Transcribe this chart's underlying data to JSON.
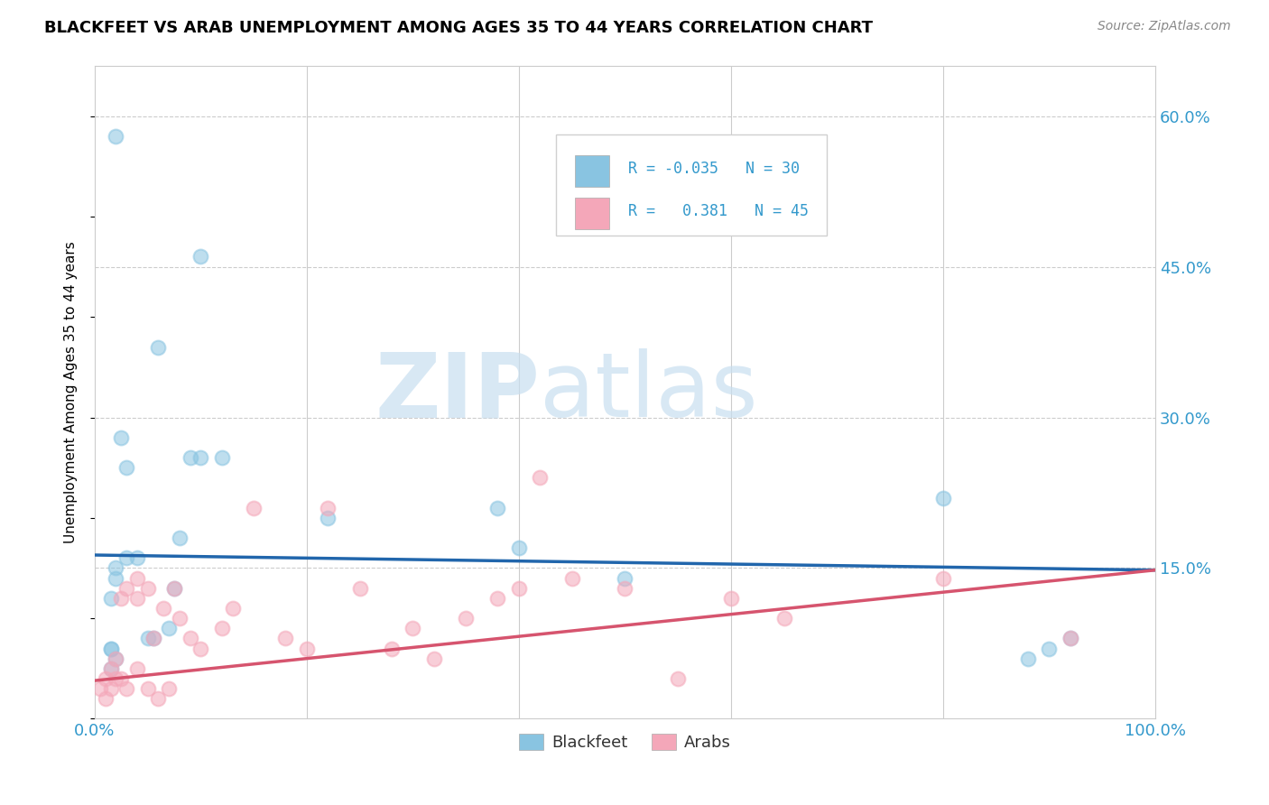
{
  "title": "BLACKFEET VS ARAB UNEMPLOYMENT AMONG AGES 35 TO 44 YEARS CORRELATION CHART",
  "source": "Source: ZipAtlas.com",
  "ylabel": "Unemployment Among Ages 35 to 44 years",
  "xlim": [
    0.0,
    1.0
  ],
  "ylim": [
    0.0,
    0.65
  ],
  "xticks": [
    0.0,
    0.2,
    0.4,
    0.6,
    0.8,
    1.0
  ],
  "xticklabels": [
    "0.0%",
    "",
    "",
    "",
    "",
    "100.0%"
  ],
  "ytick_positions": [
    0.0,
    0.15,
    0.3,
    0.45,
    0.6
  ],
  "ytick_labels": [
    "",
    "15.0%",
    "30.0%",
    "45.0%",
    "60.0%"
  ],
  "blackfeet_color": "#89c4e1",
  "arab_color": "#f4a7b9",
  "trend_blue": "#2166ac",
  "trend_pink": "#d6546e",
  "watermark_zip": "ZIP",
  "watermark_atlas": "atlas",
  "legend_R_blackfeet": "-0.035",
  "legend_N_blackfeet": "30",
  "legend_R_arab": "0.381",
  "legend_N_arab": "45",
  "blackfeet_x": [
    0.015,
    0.015,
    0.015,
    0.02,
    0.02,
    0.02,
    0.025,
    0.03,
    0.03,
    0.04,
    0.05,
    0.055,
    0.06,
    0.07,
    0.075,
    0.08,
    0.09,
    0.1,
    0.1,
    0.12,
    0.22,
    0.38,
    0.4,
    0.5,
    0.8,
    0.88,
    0.9,
    0.92,
    0.015,
    0.02
  ],
  "blackfeet_y": [
    0.05,
    0.07,
    0.12,
    0.14,
    0.15,
    0.58,
    0.28,
    0.25,
    0.16,
    0.16,
    0.08,
    0.08,
    0.37,
    0.09,
    0.13,
    0.18,
    0.26,
    0.46,
    0.26,
    0.26,
    0.2,
    0.21,
    0.17,
    0.14,
    0.22,
    0.06,
    0.07,
    0.08,
    0.07,
    0.06
  ],
  "arab_x": [
    0.005,
    0.01,
    0.01,
    0.015,
    0.015,
    0.02,
    0.02,
    0.025,
    0.025,
    0.03,
    0.03,
    0.04,
    0.04,
    0.04,
    0.05,
    0.05,
    0.055,
    0.06,
    0.065,
    0.07,
    0.075,
    0.08,
    0.09,
    0.1,
    0.12,
    0.13,
    0.15,
    0.18,
    0.2,
    0.22,
    0.25,
    0.28,
    0.3,
    0.32,
    0.35,
    0.38,
    0.4,
    0.42,
    0.45,
    0.5,
    0.55,
    0.6,
    0.65,
    0.8,
    0.92
  ],
  "arab_y": [
    0.03,
    0.02,
    0.04,
    0.03,
    0.05,
    0.04,
    0.06,
    0.04,
    0.12,
    0.03,
    0.13,
    0.05,
    0.12,
    0.14,
    0.03,
    0.13,
    0.08,
    0.02,
    0.11,
    0.03,
    0.13,
    0.1,
    0.08,
    0.07,
    0.09,
    0.11,
    0.21,
    0.08,
    0.07,
    0.21,
    0.13,
    0.07,
    0.09,
    0.06,
    0.1,
    0.12,
    0.13,
    0.24,
    0.14,
    0.13,
    0.04,
    0.12,
    0.1,
    0.14,
    0.08
  ],
  "blue_trend_x0": 0.0,
  "blue_trend_y0": 0.163,
  "blue_trend_x1": 1.0,
  "blue_trend_y1": 0.148,
  "pink_trend_x0": 0.0,
  "pink_trend_y0": 0.038,
  "pink_trend_x1": 1.0,
  "pink_trend_y1": 0.148,
  "background_color": "#ffffff",
  "grid_color": "#cccccc"
}
